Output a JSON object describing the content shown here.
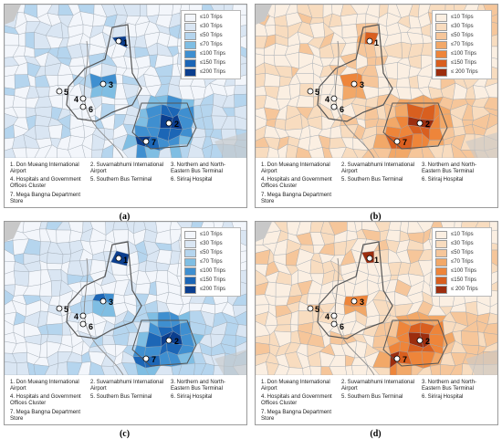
{
  "legend": [
    {
      "label": "≤10 Trips"
    },
    {
      "label": "≤30 Trips"
    },
    {
      "label": "≤50 Trips"
    },
    {
      "label": "≤70 Trips"
    },
    {
      "label": "≤100 Trips"
    },
    {
      "label": "≤150 Trips"
    },
    {
      "label": "≤200 Trips"
    }
  ],
  "legend_alt_last": "≤ 200 Trips",
  "palettes": {
    "blue": [
      "#f3f6fb",
      "#dae6f3",
      "#b5d5ee",
      "#7fbee3",
      "#3f8fd0",
      "#1c66b6",
      "#0b3e8e"
    ],
    "orange": [
      "#fbefe2",
      "#f8dcbf",
      "#f6c69a",
      "#f2a868",
      "#ee853a",
      "#d95f1f",
      "#9c2d0e"
    ]
  },
  "locations": [
    {
      "id": "1",
      "name": "Don Mueang International Airport"
    },
    {
      "id": "2",
      "name": "Suvarnabhumi International Airport"
    },
    {
      "id": "3",
      "name": "Northern and North-Eastern Bus Terminal"
    },
    {
      "id": "4",
      "name": "Hospitals and Government Offices Cluster"
    },
    {
      "id": "5",
      "name": "Southern Bus Terminal"
    },
    {
      "id": "6",
      "name": "Siriraj Hospital"
    },
    {
      "id": "7",
      "name": "Mega Bangna Department Store"
    }
  ],
  "captions": [
    "1. Don Mueang International Airport",
    "2. Suvarnabhumi International Airport",
    "3. Northern and North-Eastern Bus Terminal",
    "4. Hospitals and Government Offices Cluster",
    "5. Southern Bus Terminal",
    "6. Siriraj Hospital",
    "7. Mega Bangna Department Store"
  ],
  "panels": [
    {
      "label": "(a)",
      "palette": "blue"
    },
    {
      "label": "(b)",
      "palette": "orange"
    },
    {
      "label": "(c)",
      "palette": "blue"
    },
    {
      "label": "(d)",
      "palette": "orange"
    }
  ]
}
